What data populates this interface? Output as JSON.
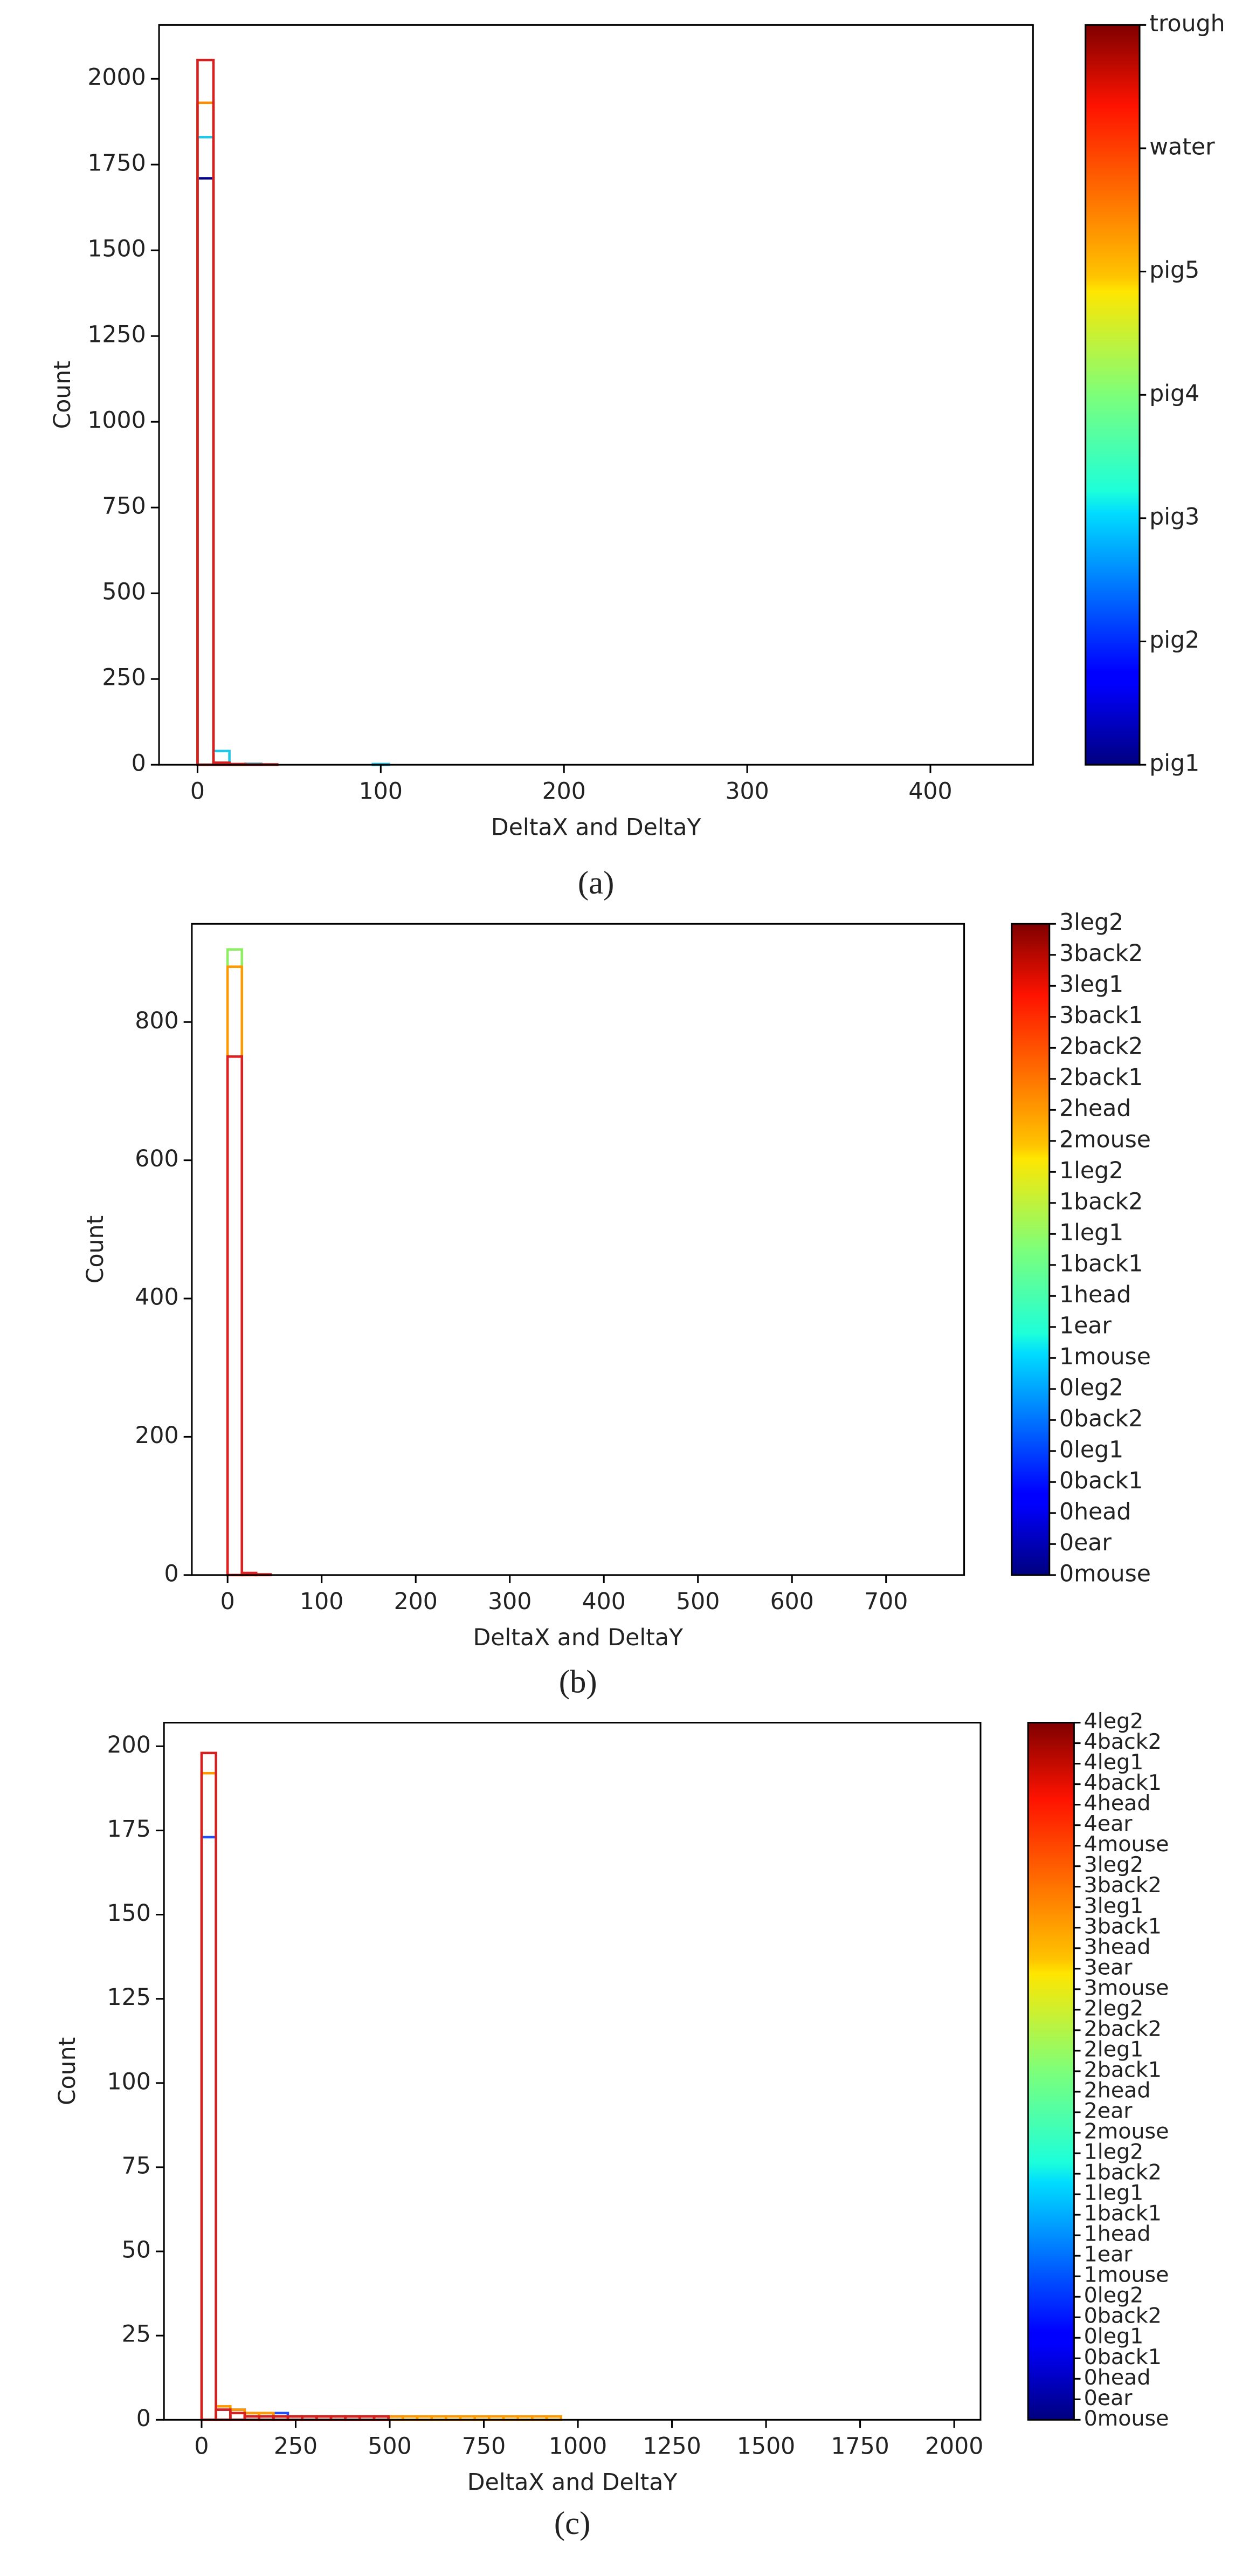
{
  "chart_data": [
    {
      "type": "histogram",
      "xlabel": "DeltaX and DeltaY",
      "ylabel": "Count",
      "caption": "(a)",
      "bins": [
        0,
        8.7,
        17.4,
        26.1,
        34.8,
        43.5,
        52.2,
        60.9,
        69.6,
        78.3,
        87,
        95.7,
        104.4,
        113.1,
        121.8,
        130.5,
        139.2,
        147.9,
        156.6,
        165.3,
        174,
        182.7,
        191.4,
        200.1,
        208.8,
        217.5,
        226.2,
        234.9,
        243.6,
        252.3,
        261,
        269.7,
        278.4,
        287.1,
        295.8,
        304.5,
        313.2,
        321.9,
        330.6,
        339.3,
        348,
        356.7,
        365.4,
        374.1,
        382.8,
        391.5,
        400.2,
        408.9,
        417.6,
        426.3,
        435
      ],
      "series": [
        {
          "name": "pig1",
          "color": "#00008b",
          "values": [
            1710,
            3,
            0,
            0,
            0,
            0,
            0,
            0,
            0,
            0,
            0,
            0,
            0,
            0,
            0,
            0,
            0,
            0,
            0,
            0,
            0,
            0,
            0,
            0,
            0,
            0,
            0,
            0,
            0,
            0,
            0,
            0,
            0,
            0,
            0,
            0,
            0,
            0,
            0,
            0,
            0,
            0,
            0,
            0,
            0,
            0,
            0,
            0,
            0,
            0
          ]
        },
        {
          "name": "pig3",
          "color": "#1ec8e6",
          "values": [
            1830,
            40,
            2,
            3,
            0,
            0,
            0,
            0,
            0,
            0,
            0,
            2,
            0,
            0,
            0,
            0,
            0,
            0,
            0,
            0,
            0,
            0,
            0,
            0,
            0,
            0,
            0,
            0,
            0,
            0,
            0,
            0,
            0,
            0,
            0,
            0,
            0,
            0,
            0,
            0,
            0,
            0,
            0,
            0,
            0,
            0,
            0,
            0,
            0,
            0
          ]
        },
        {
          "name": "water",
          "color": "#ff8c00",
          "values": [
            1930,
            4,
            1,
            0,
            0,
            0,
            0,
            0,
            0,
            0,
            0,
            0,
            0,
            0,
            0,
            0,
            0,
            0,
            0,
            0,
            0,
            0,
            0,
            0,
            0,
            0,
            0,
            0,
            0,
            0,
            0,
            0,
            0,
            0,
            0,
            0,
            0,
            0,
            0,
            0,
            0,
            0,
            0,
            0,
            0,
            0,
            0,
            0,
            0,
            0
          ]
        },
        {
          "name": "trough",
          "color": "#d62020",
          "values": [
            2055,
            6,
            2,
            1,
            1,
            0,
            0,
            0,
            0,
            0,
            0,
            0,
            0,
            0,
            0,
            0,
            0,
            0,
            0,
            0,
            0,
            0,
            0,
            0,
            0,
            0,
            0,
            0,
            0,
            0,
            0,
            0,
            0,
            0,
            0,
            0,
            0,
            0,
            0,
            0,
            0,
            0,
            0,
            0,
            0,
            0,
            0,
            0,
            0,
            0
          ]
        }
      ],
      "xlim": [
        -21,
        456
      ],
      "ylim": [
        0,
        2157
      ],
      "xticks": [
        0,
        100,
        200,
        300,
        400
      ],
      "yticks": [
        0,
        250,
        500,
        750,
        1000,
        1250,
        1500,
        1750,
        2000
      ],
      "colormap": "jet",
      "colorbar": [
        "pig1",
        "pig2",
        "pig3",
        "pig4",
        "pig5",
        "water",
        "trough"
      ]
    },
    {
      "type": "histogram",
      "xlabel": "DeltaX and DeltaY",
      "ylabel": "Count",
      "caption": "(b)",
      "bins": [
        0,
        15.2,
        30.4,
        45.6,
        60.8,
        76,
        91.2,
        106.4,
        121.6,
        136.8,
        152,
        167.2,
        182.4,
        197.6,
        212.8,
        228,
        243.2,
        258.4,
        273.6,
        288.8,
        304,
        319.2,
        334.4,
        349.6,
        364.8,
        380,
        395.2,
        410.4,
        425.6,
        440.8,
        456,
        471.2,
        486.4,
        501.6,
        516.8,
        532,
        547.2,
        562.4,
        577.6,
        592.8,
        608,
        623.2,
        638.4,
        653.6,
        668.8,
        684,
        699.2,
        714.4,
        729.6,
        744.8,
        760
      ],
      "series": [
        {
          "name": "1leg2",
          "color": "#8cf060",
          "values": [
            905,
            1,
            0,
            0,
            0,
            0,
            0,
            0,
            0,
            0,
            0,
            0,
            0,
            0,
            0,
            0,
            0,
            0,
            0,
            0,
            0,
            0,
            0,
            0,
            0,
            0,
            0,
            0,
            0,
            0,
            0,
            0,
            0,
            0,
            0,
            0,
            0,
            0,
            0,
            0,
            0,
            0,
            0,
            0,
            0,
            0,
            0,
            0,
            0,
            0
          ]
        },
        {
          "name": "2mouse",
          "color": "#ff9900",
          "values": [
            880,
            2,
            0,
            0,
            0,
            0,
            0,
            0,
            0,
            0,
            0,
            0,
            0,
            0,
            0,
            0,
            0,
            0,
            0,
            0,
            0,
            0,
            0,
            0,
            0,
            0,
            0,
            0,
            0,
            0,
            0,
            0,
            0,
            0,
            0,
            0,
            0,
            0,
            0,
            0,
            0,
            0,
            0,
            0,
            0,
            0,
            0,
            0,
            0,
            0
          ]
        },
        {
          "name": "3leg1",
          "color": "#e02020",
          "values": [
            750,
            3,
            1,
            0,
            0,
            0,
            0,
            0,
            0,
            0,
            0,
            0,
            0,
            0,
            0,
            0,
            0,
            0,
            0,
            0,
            0,
            0,
            0,
            0,
            0,
            0,
            0,
            0,
            0,
            0,
            0,
            0,
            0,
            0,
            0,
            0,
            0,
            0,
            0,
            0,
            0,
            0,
            0,
            0,
            0,
            0,
            0,
            0,
            0,
            0
          ]
        }
      ],
      "xlim": [
        -38,
        783
      ],
      "ylim": [
        0,
        942
      ],
      "xticks": [
        0,
        100,
        200,
        300,
        400,
        500,
        600,
        700
      ],
      "yticks": [
        0,
        200,
        400,
        600,
        800
      ],
      "colormap": "jet",
      "colorbar": [
        "0mouse",
        "0ear",
        "0head",
        "0back1",
        "0leg1",
        "0back2",
        "0leg2",
        "1mouse",
        "1ear",
        "1head",
        "1back1",
        "1leg1",
        "1back2",
        "1leg2",
        "2mouse",
        "2head",
        "2back1",
        "2back2",
        "3back1",
        "3leg1",
        "3back2",
        "3leg2"
      ]
    },
    {
      "type": "histogram",
      "xlabel": "DeltaX and DeltaY",
      "ylabel": "Count",
      "caption": "(c)",
      "bins": [
        0,
        38.2,
        76.4,
        114.6,
        152.8,
        191,
        229.2,
        267.4,
        305.6,
        343.8,
        382,
        420.2,
        458.4,
        496.6,
        534.8,
        573,
        611.2,
        649.4,
        687.6,
        725.8,
        764,
        802.2,
        840.4,
        878.6,
        916.8,
        955,
        993.2,
        1031.4,
        1069.6,
        1107.8,
        1146,
        1184.2,
        1222.4,
        1260.6,
        1298.8,
        1337,
        1375.2,
        1413.4,
        1451.6,
        1489.8,
        1528,
        1566.2,
        1604.4,
        1642.6,
        1680.8,
        1719,
        1757.2,
        1795.4,
        1833.6,
        1871.8,
        1910
      ],
      "series": [
        {
          "name": "1head",
          "color": "#1e50ff",
          "values": [
            173,
            3,
            3,
            2,
            2,
            2,
            1,
            1,
            1,
            1,
            1,
            1,
            1,
            1,
            0,
            0,
            0,
            0,
            0,
            0,
            0,
            0,
            0,
            0,
            0,
            0,
            0,
            0,
            0,
            0,
            0,
            0,
            0,
            0,
            0,
            0,
            0,
            0,
            0,
            0,
            0,
            0,
            0,
            0,
            0,
            0,
            0,
            0,
            0,
            0
          ]
        },
        {
          "name": "3leg1",
          "color": "#ff9900",
          "values": [
            192,
            4,
            3,
            2,
            2,
            1,
            1,
            1,
            1,
            1,
            1,
            1,
            1,
            1,
            1,
            1,
            1,
            1,
            1,
            1,
            1,
            1,
            1,
            1,
            1,
            0,
            0,
            0,
            0,
            0,
            0,
            0,
            0,
            0,
            0,
            0,
            0,
            0,
            0,
            0,
            0,
            0,
            0,
            0,
            0,
            0,
            0,
            0,
            0,
            0
          ]
        },
        {
          "name": "4leg2",
          "color": "#d62020",
          "values": [
            198,
            3,
            2,
            1,
            1,
            1,
            1,
            1,
            1,
            1,
            1,
            1,
            1,
            0,
            0,
            0,
            0,
            0,
            0,
            0,
            0,
            0,
            0,
            0,
            0,
            0,
            0,
            0,
            0,
            0,
            0,
            0,
            0,
            0,
            0,
            0,
            0,
            0,
            0,
            0,
            0,
            0,
            0,
            0,
            0,
            0,
            0,
            0,
            0,
            0
          ]
        }
      ],
      "xlim": [
        -100,
        2070
      ],
      "ylim": [
        0,
        207
      ],
      "xticks": [
        0,
        250,
        500,
        750,
        1000,
        1250,
        1500,
        1750,
        2000
      ],
      "yticks": [
        0,
        25,
        50,
        75,
        100,
        125,
        150,
        175,
        200
      ],
      "colormap": "jet",
      "colorbar": [
        "0mouse",
        "0ear",
        "0head",
        "0back1",
        "0leg1",
        "0back2",
        "0leg2",
        "1mouse",
        "1ear",
        "1head",
        "1back1",
        "1leg1",
        "1back2",
        "1leg2",
        "2mouse",
        "2ear",
        "2head",
        "2back1",
        "2leg1",
        "2back2",
        "2leg2",
        "3mouse",
        "3ear",
        "3head",
        "3back1",
        "3leg1",
        "3back2",
        "3leg2",
        "4mouse",
        "4ear",
        "4head",
        "4back1",
        "4leg1",
        "4back2",
        "4leg2"
      ]
    }
  ]
}
